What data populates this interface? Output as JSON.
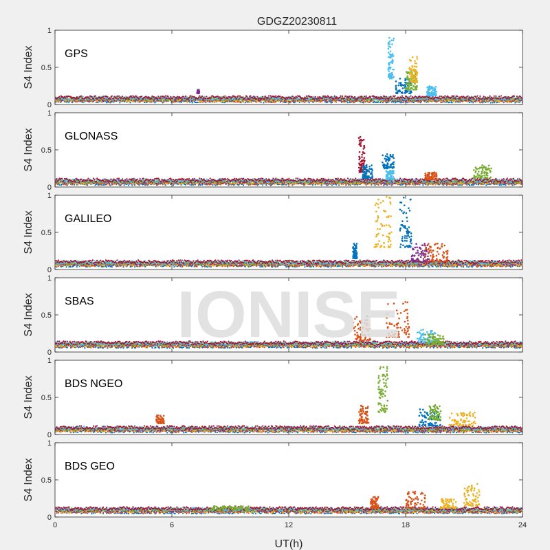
{
  "figure": {
    "title": "GDGZ20230811",
    "watermark": "IONISE"
  },
  "chart_data": {
    "type": "scatter",
    "title": "GDGZ20230811",
    "xlabel": "UT(h)",
    "ylabel": "S4 Index",
    "xlim": [
      0,
      24
    ],
    "ylim": [
      0,
      1
    ],
    "xticks": [
      "0",
      "6",
      "12",
      "18",
      "24"
    ],
    "yticks": [
      "0",
      "0.5",
      "1"
    ],
    "grid": false,
    "series_colors": [
      "#0072BD",
      "#D95319",
      "#EDB120",
      "#7E2F8E",
      "#77AC30",
      "#4DBEEE",
      "#A2142F"
    ],
    "panels": [
      {
        "name": "GPS",
        "baseline": 0.07,
        "bursts": [
          {
            "x": [
              17.1,
              17.4
            ],
            "y": [
              0.35,
              0.95
            ],
            "color": "#4DBEEE"
          },
          {
            "x": [
              17.5,
              18.3
            ],
            "y": [
              0.15,
              0.35
            ],
            "color": "#0072BD"
          },
          {
            "x": [
              18.0,
              18.6
            ],
            "y": [
              0.2,
              0.45
            ],
            "color": "#77AC30"
          },
          {
            "x": [
              18.2,
              18.6
            ],
            "y": [
              0.3,
              0.65
            ],
            "color": "#EDB120"
          },
          {
            "x": [
              19.1,
              19.6
            ],
            "y": [
              0.12,
              0.25
            ],
            "color": "#4DBEEE"
          },
          {
            "x": [
              7.3,
              7.4
            ],
            "y": [
              0.15,
              0.2
            ],
            "color": "#7E2F8E"
          }
        ]
      },
      {
        "name": "GLONASS",
        "baseline": 0.07,
        "bursts": [
          {
            "x": [
              15.6,
              15.9
            ],
            "y": [
              0.2,
              0.68
            ],
            "color": "#A2142F"
          },
          {
            "x": [
              15.8,
              16.3
            ],
            "y": [
              0.12,
              0.3
            ],
            "color": "#0072BD"
          },
          {
            "x": [
              16.8,
              17.4
            ],
            "y": [
              0.25,
              0.45
            ],
            "color": "#0072BD"
          },
          {
            "x": [
              17.0,
              17.4
            ],
            "y": [
              0.1,
              0.22
            ],
            "color": "#4DBEEE"
          },
          {
            "x": [
              19.0,
              19.6
            ],
            "y": [
              0.1,
              0.2
            ],
            "color": "#D95319"
          },
          {
            "x": [
              21.5,
              22.4
            ],
            "y": [
              0.12,
              0.3
            ],
            "color": "#77AC30"
          }
        ]
      },
      {
        "name": "GALILEO",
        "baseline": 0.08,
        "bursts": [
          {
            "x": [
              15.3,
              15.5
            ],
            "y": [
              0.15,
              0.35
            ],
            "color": "#0072BD"
          },
          {
            "x": [
              16.4,
              17.3
            ],
            "y": [
              0.3,
              0.98
            ],
            "color": "#EDB120"
          },
          {
            "x": [
              17.7,
              18.3
            ],
            "y": [
              0.3,
              0.98
            ],
            "color": "#0072BD"
          },
          {
            "x": [
              18.3,
              19.2
            ],
            "y": [
              0.1,
              0.35
            ],
            "color": "#7E2F8E"
          },
          {
            "x": [
              19.0,
              20.2
            ],
            "y": [
              0.1,
              0.35
            ],
            "color": "#D95319"
          }
        ]
      },
      {
        "name": "SBAS",
        "baseline": 0.1,
        "bursts": [
          {
            "x": [
              15.3,
              16.2
            ],
            "y": [
              0.15,
              0.5
            ],
            "color": "#D95319"
          },
          {
            "x": [
              17.0,
              18.2
            ],
            "y": [
              0.2,
              0.68
            ],
            "color": "#D95319"
          },
          {
            "x": [
              18.6,
              19.6
            ],
            "y": [
              0.12,
              0.3
            ],
            "color": "#4DBEEE"
          },
          {
            "x": [
              19.0,
              20.0
            ],
            "y": [
              0.1,
              0.25
            ],
            "color": "#77AC30"
          }
        ]
      },
      {
        "name": "BDS NGEO",
        "baseline": 0.07,
        "bursts": [
          {
            "x": [
              16.6,
              17.1
            ],
            "y": [
              0.3,
              0.95
            ],
            "color": "#77AC30"
          },
          {
            "x": [
              15.6,
              16.1
            ],
            "y": [
              0.15,
              0.4
            ],
            "color": "#D95319"
          },
          {
            "x": [
              18.7,
              19.8
            ],
            "y": [
              0.12,
              0.35
            ],
            "color": "#0072BD"
          },
          {
            "x": [
              19.2,
              19.8
            ],
            "y": [
              0.2,
              0.4
            ],
            "color": "#77AC30"
          },
          {
            "x": [
              20.2,
              21.6
            ],
            "y": [
              0.12,
              0.3
            ],
            "color": "#EDB120"
          },
          {
            "x": [
              5.2,
              5.6
            ],
            "y": [
              0.15,
              0.26
            ],
            "color": "#D95319"
          }
        ]
      },
      {
        "name": "BDS GEO",
        "baseline": 0.09,
        "bursts": [
          {
            "x": [
              16.2,
              16.6
            ],
            "y": [
              0.12,
              0.28
            ],
            "color": "#D95319"
          },
          {
            "x": [
              18.0,
              19.0
            ],
            "y": [
              0.12,
              0.35
            ],
            "color": "#D95319"
          },
          {
            "x": [
              19.8,
              20.6
            ],
            "y": [
              0.12,
              0.25
            ],
            "color": "#EDB120"
          },
          {
            "x": [
              21.0,
              21.8
            ],
            "y": [
              0.15,
              0.45
            ],
            "color": "#EDB120"
          },
          {
            "x": [
              8.0,
              10.0
            ],
            "y": [
              0.1,
              0.15
            ],
            "color": "#77AC30"
          }
        ]
      }
    ]
  }
}
